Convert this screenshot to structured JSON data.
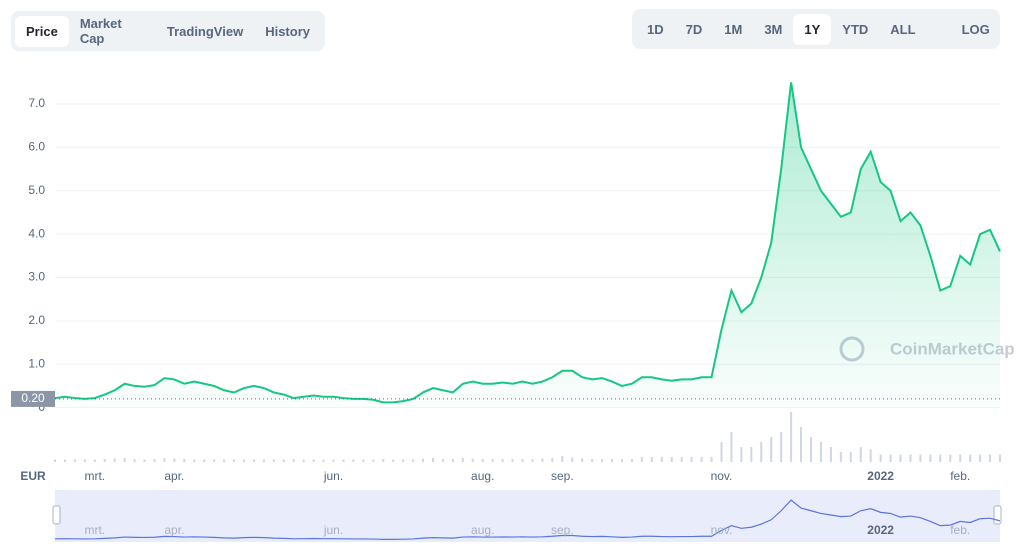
{
  "tabs": [
    "Price",
    "Market Cap",
    "TradingView",
    "History"
  ],
  "ranges": [
    "1D",
    "7D",
    "1M",
    "3M",
    "1Y",
    "YTD",
    "ALL"
  ],
  "log": "LOG",
  "currency": "EUR",
  "watermark": "CoinMarketCap",
  "chart_data": {
    "type": "line",
    "categories": [
      null,
      null,
      null,
      null,
      "mrt.",
      null,
      null,
      null,
      null,
      null,
      null,
      null,
      "apr.",
      null,
      null,
      null,
      null,
      null,
      null,
      null,
      null,
      null,
      null,
      null,
      null,
      null,
      null,
      null,
      "jun.",
      null,
      null,
      null,
      null,
      null,
      null,
      null,
      null,
      null,
      null,
      null,
      null,
      null,
      null,
      "aug.",
      null,
      null,
      null,
      null,
      null,
      null,
      null,
      "sep.",
      null,
      null,
      null,
      null,
      null,
      null,
      null,
      null,
      null,
      null,
      null,
      null,
      null,
      null,
      null,
      "nov.",
      null,
      null,
      null,
      null,
      null,
      null,
      null,
      null,
      null,
      null,
      null,
      null,
      null,
      null,
      null,
      "2022",
      null,
      null,
      null,
      null,
      null,
      null,
      null,
      "feb.",
      null,
      null,
      null,
      null
    ],
    "series": [
      {
        "color": "#16c784",
        "values": [
          0.22,
          0.25,
          0.22,
          0.2,
          0.22,
          0.3,
          0.4,
          0.55,
          0.5,
          0.48,
          0.52,
          0.68,
          0.65,
          0.55,
          0.6,
          0.55,
          0.5,
          0.4,
          0.35,
          0.45,
          0.5,
          0.45,
          0.35,
          0.3,
          0.22,
          0.25,
          0.28,
          0.25,
          0.25,
          0.22,
          0.2,
          0.2,
          0.18,
          0.12,
          0.12,
          0.15,
          0.2,
          0.35,
          0.45,
          0.4,
          0.35,
          0.55,
          0.6,
          0.55,
          0.55,
          0.58,
          0.55,
          0.6,
          0.55,
          0.6,
          0.7,
          0.85,
          0.85,
          0.7,
          0.65,
          0.68,
          0.6,
          0.5,
          0.55,
          0.7,
          0.7,
          0.65,
          0.62,
          0.65,
          0.65,
          0.7,
          0.7,
          1.8,
          2.7,
          2.2,
          2.4,
          3.0,
          3.8,
          5.5,
          7.5,
          6.0,
          5.5,
          5.0,
          4.7,
          4.4,
          4.5,
          5.5,
          5.9,
          5.2,
          5.0,
          4.3,
          4.5,
          4.2,
          3.5,
          2.7,
          2.8,
          3.5,
          3.3,
          4.0,
          4.1,
          3.6
        ]
      }
    ],
    "volume": [
      0.5,
      0.5,
      0.5,
      0.5,
      0.5,
      0.6,
      0.7,
      0.8,
      0.6,
      0.5,
      0.6,
      0.8,
      0.7,
      0.6,
      0.5,
      0.5,
      0.5,
      0.5,
      0.5,
      0.5,
      0.5,
      0.5,
      0.5,
      0.5,
      0.6,
      0.5,
      0.5,
      0.5,
      0.5,
      0.5,
      0.5,
      0.5,
      0.5,
      0.6,
      0.5,
      0.5,
      0.5,
      0.7,
      0.8,
      0.6,
      0.6,
      0.8,
      0.7,
      0.6,
      0.6,
      0.6,
      0.6,
      0.6,
      0.6,
      0.7,
      0.8,
      1.2,
      0.9,
      0.7,
      0.6,
      0.6,
      0.6,
      0.6,
      0.6,
      1,
      1,
      1,
      1,
      1,
      1,
      1,
      1,
      4,
      6,
      3,
      3,
      4,
      5,
      6,
      10,
      7,
      5,
      4,
      3,
      2,
      2,
      3,
      2.5,
      1.5,
      1.5,
      1.5,
      1.5,
      1.5,
      1.5,
      1.5,
      1.5,
      1.5,
      1.5,
      1.5,
      1.5,
      1.5
    ],
    "y2lim": [
      0,
      10
    ],
    "ylim": [
      0,
      7.9
    ],
    "yticks": [
      0,
      {
        "value": 1,
        "label": "1.0"
      },
      {
        "value": 2,
        "label": "2.0"
      },
      {
        "value": 3,
        "label": "3.0"
      },
      {
        "value": 4,
        "label": "4.0"
      },
      {
        "value": 5,
        "label": "5.0"
      },
      {
        "value": 6,
        "label": "6.0"
      },
      {
        "value": 7,
        "label": "7.0"
      }
    ],
    "grid": true,
    "reference_line": {
      "value": 0.2,
      "label": "0.20"
    },
    "navigator_color": "#5b74e3"
  }
}
